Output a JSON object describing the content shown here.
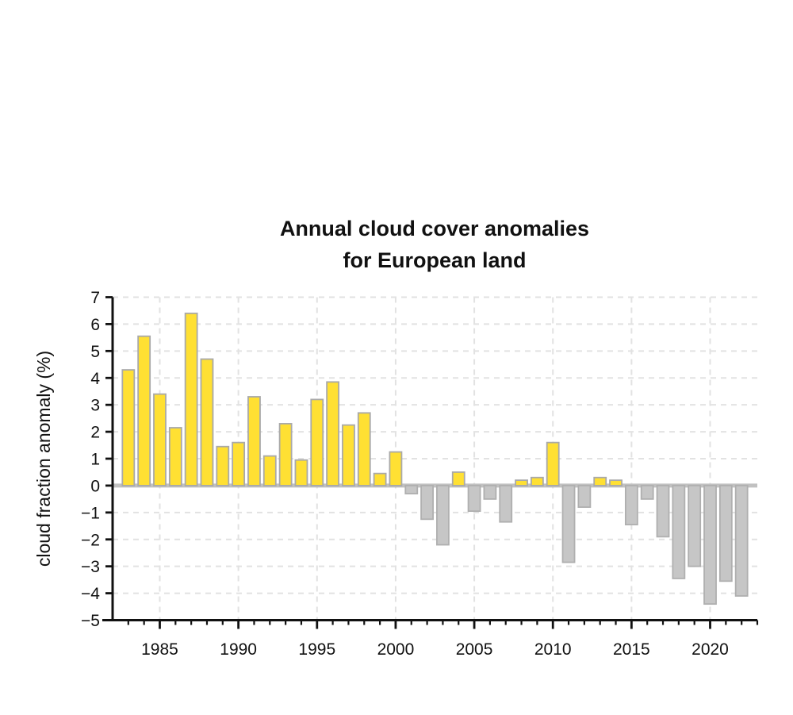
{
  "chart_data": {
    "type": "bar",
    "title_lines": [
      "Annual cloud cover anomalies",
      "for European land"
    ],
    "xlabel": "",
    "ylabel": "cloud fraction anomaly (%)",
    "x": [
      1983,
      1984,
      1985,
      1986,
      1987,
      1988,
      1989,
      1990,
      1991,
      1992,
      1993,
      1994,
      1995,
      1996,
      1997,
      1998,
      1999,
      2000,
      2001,
      2002,
      2003,
      2004,
      2005,
      2006,
      2007,
      2008,
      2009,
      2010,
      2011,
      2012,
      2013,
      2014,
      2015,
      2016,
      2017,
      2018,
      2019,
      2020,
      2021,
      2022
    ],
    "values": [
      4.3,
      5.55,
      3.4,
      2.15,
      6.4,
      4.7,
      1.45,
      1.6,
      3.3,
      1.1,
      2.3,
      0.95,
      3.2,
      3.85,
      2.25,
      2.7,
      0.45,
      1.25,
      -0.3,
      -1.25,
      -2.2,
      0.5,
      -0.95,
      -0.5,
      -1.35,
      0.2,
      0.3,
      1.6,
      -2.85,
      -0.8,
      0.3,
      0.2,
      -1.45,
      -0.5,
      -1.9,
      -3.45,
      -3.0,
      -4.4,
      -3.55,
      -4.1
    ],
    "xlim": [
      1982,
      2023
    ],
    "ylim": [
      -5,
      7
    ],
    "yticks": [
      {
        "v": 7,
        "label": "7"
      },
      {
        "v": 6,
        "label": "6"
      },
      {
        "v": 5,
        "label": "5"
      },
      {
        "v": 4,
        "label": "4"
      },
      {
        "v": 3,
        "label": "3"
      },
      {
        "v": 2,
        "label": "2"
      },
      {
        "v": 1,
        "label": "1"
      },
      {
        "v": 0,
        "label": "0"
      },
      {
        "v": -1,
        "label": "−1"
      },
      {
        "v": -2,
        "label": "−2"
      },
      {
        "v": -3,
        "label": "−3"
      },
      {
        "v": -4,
        "label": "−4"
      },
      {
        "v": -5,
        "label": "−5"
      }
    ],
    "xticks_major": [
      {
        "v": 1985,
        "label": "1985"
      },
      {
        "v": 1990,
        "label": "1990"
      },
      {
        "v": 1995,
        "label": "1995"
      },
      {
        "v": 2000,
        "label": "2000"
      },
      {
        "v": 2005,
        "label": "2005"
      },
      {
        "v": 2010,
        "label": "2010"
      },
      {
        "v": 2015,
        "label": "2015"
      },
      {
        "v": 2020,
        "label": "2020"
      }
    ],
    "grid": true,
    "legend": "none",
    "colors": {
      "positive_fill": "#FFE033",
      "positive_stroke": "#A9A9A9",
      "negative_fill": "#C6C6C6",
      "negative_stroke": "#AFAFAF",
      "zero_line": "#C1C1C1",
      "gridline": "#E2E2E2",
      "axis": "#111111",
      "background": "#FFFFFF"
    }
  }
}
